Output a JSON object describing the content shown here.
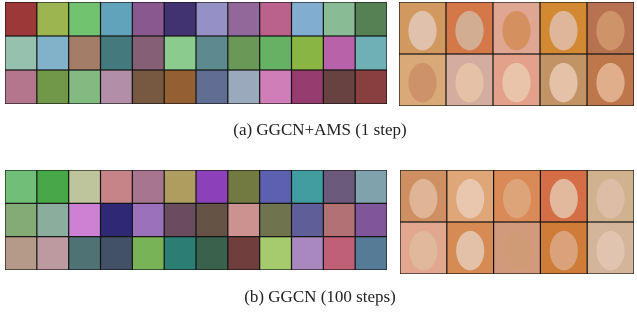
{
  "panels": [
    {
      "caption": "(a) GGCN+AMS (1 step)"
    },
    {
      "caption": "(b) GGCN (100 steps)"
    }
  ]
}
